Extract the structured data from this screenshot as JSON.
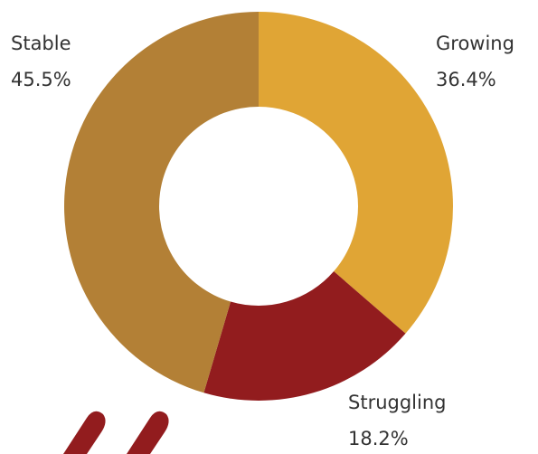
{
  "chart_data": {
    "type": "donut",
    "categories": [
      "Growing",
      "Struggling",
      "Stable"
    ],
    "values": [
      36.4,
      18.2,
      45.5
    ],
    "value_labels": [
      "36.4%",
      "18.2%",
      "45.5%"
    ],
    "colors": [
      "#e0a535",
      "#921c1e",
      "#b38036"
    ]
  }
}
